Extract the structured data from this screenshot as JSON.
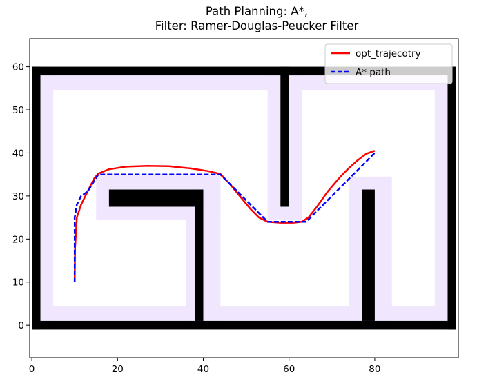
{
  "chart_data": {
    "type": "line",
    "title_line1": "Path Planning: A*,",
    "title_line2": "Filter: Ramer-Douglas-Peucker Filter",
    "xlabel": "",
    "ylabel": "",
    "xlim": [
      -0.5,
      99.5
    ],
    "ylim": [
      -7.5,
      66.5
    ],
    "x_ticks": [
      0,
      20,
      40,
      60,
      80
    ],
    "y_ticks": [
      0,
      10,
      20,
      30,
      40,
      50,
      60
    ],
    "grid": false,
    "legend_position": "top-right",
    "colors": {
      "free": "#ffffff",
      "inflation": "#f0e6fd",
      "obstacle": "#000000",
      "opt_trajectory": "#ff0000",
      "astar_path": "#0000ff"
    },
    "map": {
      "obstacles": [
        {
          "x0": 0,
          "x1": 99,
          "y0": -1,
          "y1": 1
        },
        {
          "x0": 0,
          "x1": 99,
          "y0": 58,
          "y1": 60
        },
        {
          "x0": 0,
          "x1": 2,
          "y0": -1,
          "y1": 60
        },
        {
          "x0": 97,
          "x1": 99,
          "y0": -1,
          "y1": 60
        },
        {
          "x0": 58,
          "x1": 60,
          "y0": 27.5,
          "y1": 60
        },
        {
          "x0": 18,
          "x1": 40,
          "y0": 27.5,
          "y1": 31.5
        },
        {
          "x0": 38,
          "x1": 40,
          "y0": 1,
          "y1": 31.5
        },
        {
          "x0": 77,
          "x1": 80,
          "y0": 1,
          "y1": 31.5
        }
      ],
      "inflated": [
        {
          "x0": 2,
          "x1": 97,
          "y0": 1,
          "y1": 4.5
        },
        {
          "x0": 2,
          "x1": 97,
          "y0": 54.5,
          "y1": 58
        },
        {
          "x0": 2,
          "x1": 5,
          "y0": 1,
          "y1": 58
        },
        {
          "x0": 94,
          "x1": 97,
          "y0": 1,
          "y1": 58
        },
        {
          "x0": 55,
          "x1": 63,
          "y0": 24.5,
          "y1": 58
        },
        {
          "x0": 15,
          "x1": 44,
          "y0": 24.5,
          "y1": 35
        },
        {
          "x0": 36,
          "x1": 44,
          "y0": 1,
          "y1": 35
        },
        {
          "x0": 74,
          "x1": 84,
          "y0": 1,
          "y1": 34.5
        }
      ]
    },
    "series": [
      {
        "name": "opt_trajecotry",
        "style": "solid",
        "x": [
          10,
          10.1,
          10.5,
          11.5,
          13,
          14.5,
          15.5,
          18,
          22,
          27,
          32,
          37,
          41,
          44,
          46,
          48.5,
          51,
          53,
          55,
          58,
          61,
          63,
          64.5,
          66.5,
          69,
          72,
          74,
          76,
          78,
          80
        ],
        "y": [
          10,
          18,
          25,
          28,
          31,
          34,
          35.2,
          36.2,
          36.8,
          37,
          36.9,
          36.4,
          35.8,
          35.1,
          33,
          30,
          27,
          25,
          24,
          23.8,
          23.8,
          24,
          25,
          27.5,
          31,
          34.5,
          36.5,
          38.3,
          39.8,
          40.5
        ]
      },
      {
        "name": "A* path",
        "style": "dashed",
        "x": [
          10,
          10,
          10.5,
          11.5,
          13,
          15.5,
          44,
          55,
          64,
          80
        ],
        "y": [
          10,
          25,
          28,
          30,
          31,
          35,
          35,
          24,
          24,
          40
        ]
      }
    ]
  }
}
